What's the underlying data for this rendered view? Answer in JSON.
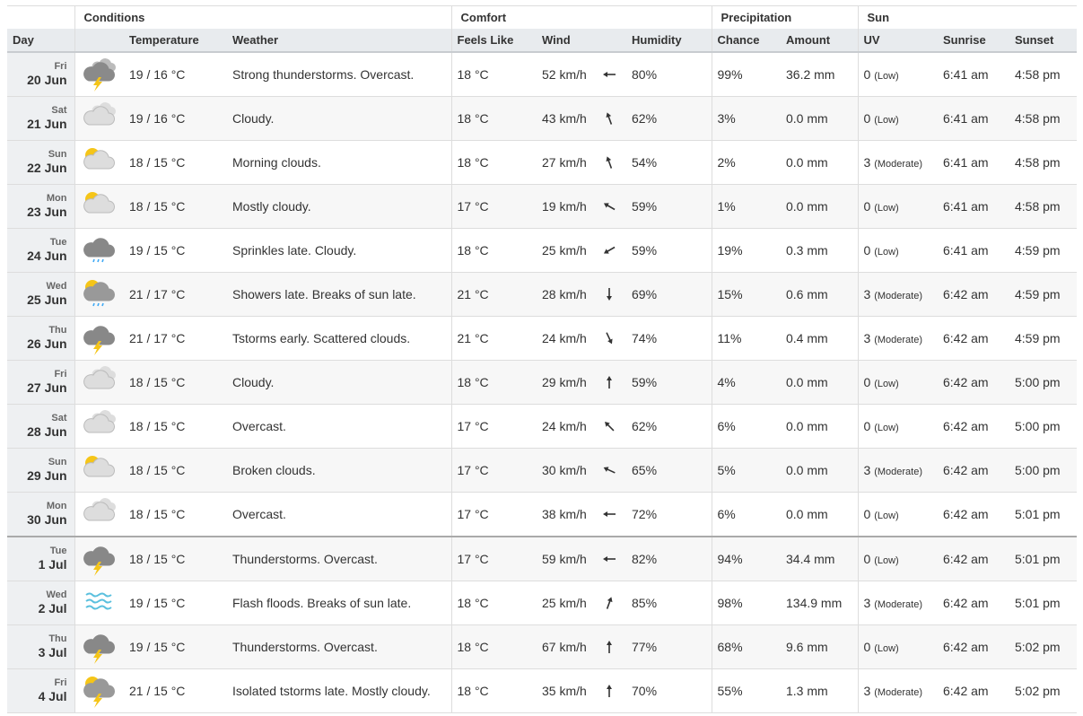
{
  "table": {
    "groups": [
      "Conditions",
      "Comfort",
      "Precipitation",
      "Sun"
    ],
    "columns": [
      "Day",
      "Temperature",
      "Weather",
      "Feels Like",
      "Wind",
      "Humidity",
      "Chance",
      "Amount",
      "UV",
      "Sunrise",
      "Sunset"
    ],
    "rows": [
      [
        "Fri",
        "20 Jun",
        "19 / 16 °C",
        "Strong thunderstorms. Overcast.",
        "18 °C",
        "52 km/h",
        "80%",
        "99%",
        "36.2 mm",
        "0",
        "(Low)",
        "6:41 am",
        "4:58 pm"
      ],
      [
        "Sat",
        "21 Jun",
        "19 / 16 °C",
        "Cloudy.",
        "18 °C",
        "43 km/h",
        "62%",
        "3%",
        "0.0 mm",
        "0",
        "(Low)",
        "6:41 am",
        "4:58 pm"
      ],
      [
        "Sun",
        "22 Jun",
        "18 / 15 °C",
        "Morning clouds.",
        "18 °C",
        "27 km/h",
        "54%",
        "2%",
        "0.0 mm",
        "3",
        "(Moderate)",
        "6:41 am",
        "4:58 pm"
      ],
      [
        "Mon",
        "23 Jun",
        "18 / 15 °C",
        "Mostly cloudy.",
        "17 °C",
        "19 km/h",
        "59%",
        "1%",
        "0.0 mm",
        "0",
        "(Low)",
        "6:41 am",
        "4:58 pm"
      ],
      [
        "Tue",
        "24 Jun",
        "19 / 15 °C",
        "Sprinkles late. Cloudy.",
        "18 °C",
        "25 km/h",
        "59%",
        "19%",
        "0.3 mm",
        "0",
        "(Low)",
        "6:41 am",
        "4:59 pm"
      ],
      [
        "Wed",
        "25 Jun",
        "21 / 17 °C",
        "Showers late. Breaks of sun late.",
        "21 °C",
        "28 km/h",
        "69%",
        "15%",
        "0.6 mm",
        "3",
        "(Moderate)",
        "6:42 am",
        "4:59 pm"
      ],
      [
        "Thu",
        "26 Jun",
        "21 / 17 °C",
        "Tstorms early. Scattered clouds.",
        "21 °C",
        "24 km/h",
        "74%",
        "11%",
        "0.4 mm",
        "3",
        "(Moderate)",
        "6:42 am",
        "4:59 pm"
      ],
      [
        "Fri",
        "27 Jun",
        "18 / 15 °C",
        "Cloudy.",
        "18 °C",
        "29 km/h",
        "59%",
        "4%",
        "0.0 mm",
        "0",
        "(Low)",
        "6:42 am",
        "5:00 pm"
      ],
      [
        "Sat",
        "28 Jun",
        "18 / 15 °C",
        "Overcast.",
        "17 °C",
        "24 km/h",
        "62%",
        "6%",
        "0.0 mm",
        "0",
        "(Low)",
        "6:42 am",
        "5:00 pm"
      ],
      [
        "Sun",
        "29 Jun",
        "18 / 15 °C",
        "Broken clouds.",
        "17 °C",
        "30 km/h",
        "65%",
        "5%",
        "0.0 mm",
        "3",
        "(Moderate)",
        "6:42 am",
        "5:00 pm"
      ],
      [
        "Mon",
        "30 Jun",
        "18 / 15 °C",
        "Overcast.",
        "17 °C",
        "38 km/h",
        "72%",
        "6%",
        "0.0 mm",
        "0",
        "(Low)",
        "6:42 am",
        "5:01 pm"
      ],
      [
        "Tue",
        "1 Jul",
        "18 / 15 °C",
        "Thunderstorms. Overcast.",
        "17 °C",
        "59 km/h",
        "82%",
        "94%",
        "34.4 mm",
        "0",
        "(Low)",
        "6:42 am",
        "5:01 pm"
      ],
      [
        "Wed",
        "2 Jul",
        "19 / 15 °C",
        "Flash floods. Breaks of sun late.",
        "18 °C",
        "25 km/h",
        "85%",
        "98%",
        "134.9 mm",
        "3",
        "(Moderate)",
        "6:42 am",
        "5:01 pm"
      ],
      [
        "Thu",
        "3 Jul",
        "19 / 15 °C",
        "Thunderstorms. Overcast.",
        "18 °C",
        "67 km/h",
        "77%",
        "68%",
        "9.6 mm",
        "0",
        "(Low)",
        "6:42 am",
        "5:02 pm"
      ],
      [
        "Fri",
        "4 Jul",
        "21 / 15 °C",
        "Isolated tstorms late. Mostly cloudy.",
        "18 °C",
        "35 km/h",
        "70%",
        "55%",
        "1.3 mm",
        "3",
        "(Moderate)",
        "6:42 am",
        "5:02 pm"
      ]
    ]
  }
}
